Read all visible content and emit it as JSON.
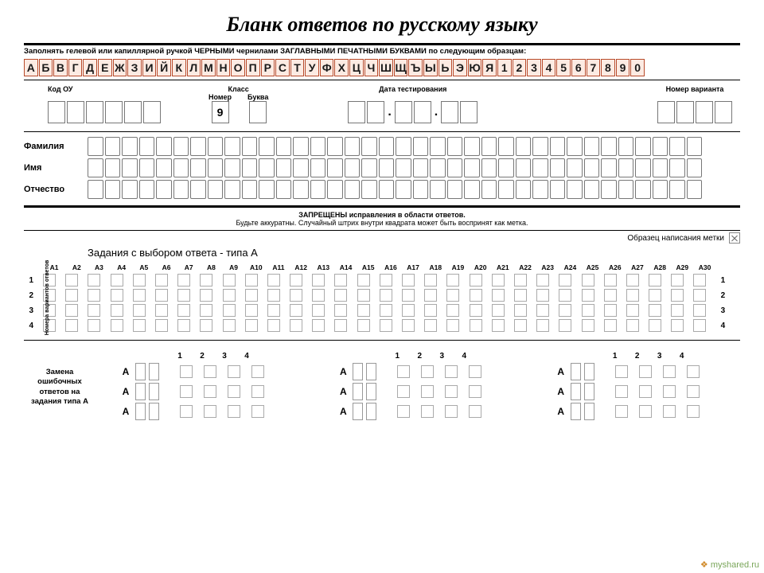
{
  "title": "Бланк ответов по русскому языку",
  "instruction": "Заполнять гелевой или капиллярной ручкой ЧЕРНЫМИ чернилами ЗАГЛАВНЫМИ ПЕЧАТНЫМИ БУКВАМИ по следующим образцам:",
  "sample_chars": [
    "А",
    "Б",
    "В",
    "Г",
    "Д",
    "Е",
    "Ж",
    "З",
    "И",
    "Й",
    "К",
    "Л",
    "М",
    "Н",
    "О",
    "П",
    "Р",
    "С",
    "Т",
    "У",
    "Ф",
    "Х",
    "Ц",
    "Ч",
    "Ш",
    "Щ",
    "Ъ",
    "Ы",
    "Ь",
    "Э",
    "Ю",
    "Я",
    "1",
    "2",
    "3",
    "4",
    "5",
    "6",
    "7",
    "8",
    "9",
    "0"
  ],
  "sample_style": {
    "border_color": "#b84a2a",
    "bg_color": "#fcebe3",
    "text_color": "#1a1a1a"
  },
  "header": {
    "kod_ou_label": "Код ОУ",
    "klass_label": "Класс",
    "nomer_label": "Номер",
    "bukva_label": "Буква",
    "klass_nomer_value": "9",
    "date_label": "Дата тестирования",
    "variant_label": "Номер варианта",
    "kod_ou_boxes": 6,
    "date_groups": [
      2,
      2,
      2
    ],
    "variant_boxes": 4
  },
  "name_rows": [
    {
      "label": "Фамилия",
      "boxes": 36
    },
    {
      "label": "Имя",
      "boxes": 36
    },
    {
      "label": "Отчество",
      "boxes": 36
    }
  ],
  "forbid_line1": "ЗАПРЕЩЕНЫ исправления в области ответов.",
  "forbid_line2": "Будьте аккуратны. Случайный штрих внутри квадрата может быть воспринят как метка.",
  "mark_sample_label": "Образец написания метки",
  "section_a_title": "Задания с выбором ответа - типа А",
  "a_columns": [
    "A1",
    "A2",
    "A3",
    "A4",
    "A5",
    "A6",
    "A7",
    "A8",
    "A9",
    "A10",
    "A11",
    "A12",
    "A13",
    "A14",
    "A15",
    "A16",
    "A17",
    "A18",
    "A19",
    "A20",
    "A21",
    "A22",
    "A23",
    "A24",
    "A25",
    "A26",
    "A27",
    "A28",
    "A29",
    "A30"
  ],
  "a_rows": [
    "1",
    "2",
    "3",
    "4"
  ],
  "a_vlabel": "Номера вариантов ответов",
  "replace": {
    "label": "Замена ошибочных ответов на задания типа А",
    "option_nums": [
      "1",
      "2",
      "3",
      "4"
    ],
    "groups": 3,
    "rows_per_group": 3,
    "letter": "А"
  },
  "watermark": "myshared.ru",
  "colors": {
    "box_border": "#888888",
    "cell_border": "#aaaaaa",
    "background": "#ffffff"
  }
}
